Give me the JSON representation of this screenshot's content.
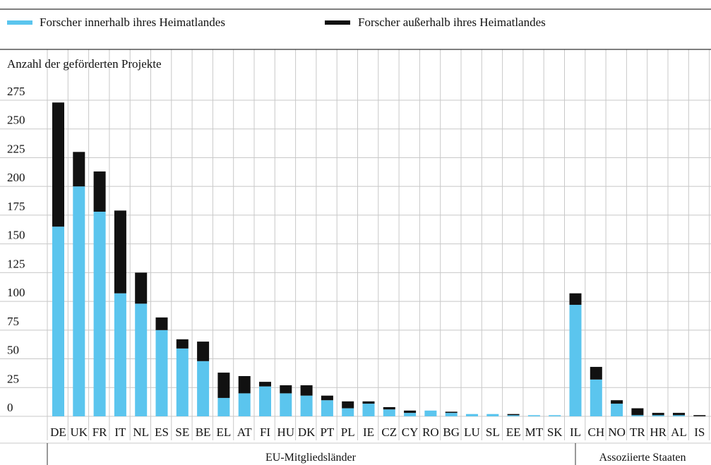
{
  "legend": {
    "inside_label": "Forscher innerhalb ihres Heimatlandes",
    "outside_label": "Forscher außerhalb ihres Heimatlandes"
  },
  "colors": {
    "inside": "#5bc5ee",
    "outside": "#111111",
    "grid": "#c8c8c8",
    "rule": "#333333"
  },
  "chart_data": {
    "type": "bar",
    "stacked": true,
    "ylabel": "Anzahl der geförderten Projekte",
    "xlabel": "",
    "ylim": [
      0,
      275
    ],
    "yticks": [
      0,
      25,
      50,
      75,
      100,
      125,
      150,
      175,
      200,
      225,
      250,
      275
    ],
    "grid": true,
    "legend_position": "top",
    "categories": [
      "DE",
      "UK",
      "FR",
      "IT",
      "NL",
      "ES",
      "SE",
      "BE",
      "EL",
      "AT",
      "FI",
      "HU",
      "DK",
      "PT",
      "PL",
      "IE",
      "CZ",
      "CY",
      "RO",
      "BG",
      "LU",
      "SL",
      "EE",
      "MT",
      "SK",
      "IL",
      "CH",
      "NO",
      "TR",
      "HR",
      "AL",
      "IS"
    ],
    "series": [
      {
        "name": "Forscher innerhalb ihres Heimatlandes",
        "values": [
          165,
          200,
          178,
          107,
          98,
          75,
          59,
          48,
          16,
          20,
          26,
          20,
          18,
          14,
          7,
          11,
          6,
          3,
          5,
          3,
          2,
          2,
          1,
          1,
          1,
          97,
          32,
          11,
          1,
          1,
          1,
          0
        ]
      },
      {
        "name": "Forscher außerhalb ihres Heimatlandes",
        "values": [
          108,
          30,
          35,
          72,
          27,
          11,
          8,
          17,
          22,
          15,
          4,
          7,
          9,
          4,
          6,
          2,
          2,
          2,
          0,
          1,
          0,
          0,
          1,
          0,
          0,
          10,
          11,
          3,
          6,
          2,
          2,
          1
        ]
      }
    ],
    "groups": [
      {
        "label": "EU-Mitgliedsländer",
        "start": 0,
        "end": 24
      },
      {
        "label": "Assoziierte Staaten",
        "start": 25,
        "end": 31
      }
    ]
  }
}
